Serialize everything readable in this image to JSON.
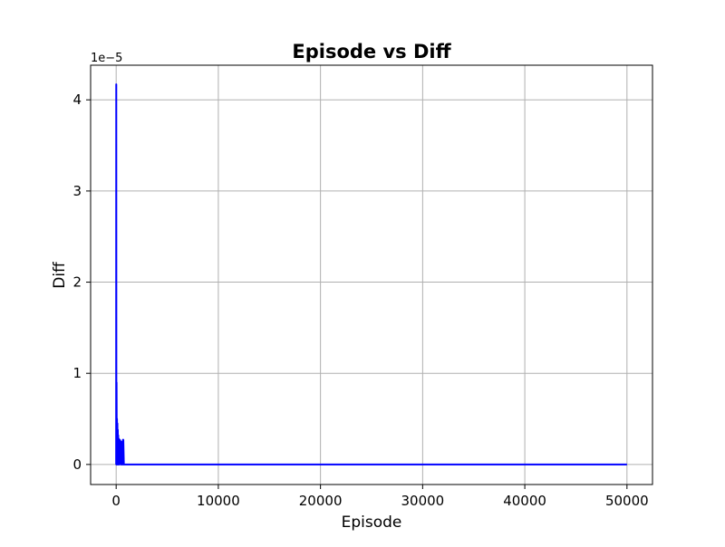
{
  "chart_data": {
    "type": "line",
    "title": "Episode vs Diff",
    "xlabel": "Episode",
    "ylabel": "Diff",
    "y_offset_label": "1e−5",
    "xlim": [
      -2500,
      52500
    ],
    "ylim": [
      -0.22,
      4.38
    ],
    "y_scale_note": "y values in units of 1e-5",
    "x_ticks": [
      0,
      10000,
      20000,
      30000,
      40000,
      50000
    ],
    "x_tick_labels": [
      "0",
      "10000",
      "20000",
      "30000",
      "40000",
      "50000"
    ],
    "y_ticks": [
      0,
      1,
      2,
      3,
      4
    ],
    "y_tick_labels": [
      "0",
      "1",
      "2",
      "3",
      "4"
    ],
    "grid": true,
    "line_color": "#0000ff",
    "series": [
      {
        "x": [
          0,
          10,
          20,
          40,
          60,
          80,
          100,
          120,
          140,
          160,
          180,
          200,
          230,
          260,
          300,
          350,
          400,
          450,
          500,
          550,
          600,
          650,
          660,
          700,
          750,
          800,
          1000,
          2000,
          5000,
          10000,
          20000,
          30000,
          40000,
          50000
        ],
        "values": [
          0,
          4.17,
          0,
          0.9,
          0.1,
          0.5,
          0,
          0.45,
          0.05,
          0.38,
          0,
          0.32,
          0.05,
          0.28,
          0,
          0.27,
          0.26,
          0,
          0.25,
          0,
          0,
          0,
          0.27,
          0.27,
          0,
          0,
          0,
          0,
          0,
          0,
          0,
          0,
          0,
          0
        ]
      }
    ]
  }
}
